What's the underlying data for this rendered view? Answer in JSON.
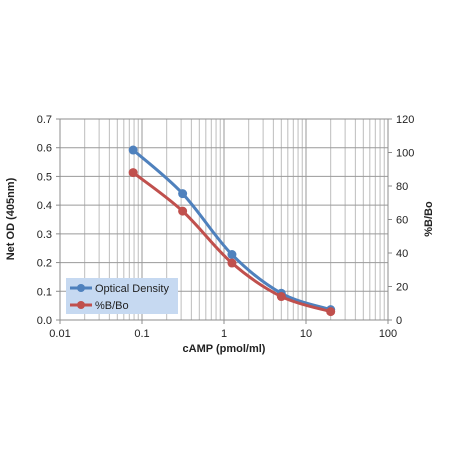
{
  "chart_data": {
    "type": "line",
    "xlabel": "cAMP (pmol/ml)",
    "ylabel": "Net OD (405nm)",
    "y2label": "%B/Bo",
    "x_scale": "log",
    "xlim": [
      0.01,
      100
    ],
    "ylim": [
      0,
      0.7
    ],
    "y2lim": [
      0,
      120
    ],
    "x_ticks": [
      "0.01",
      "0.1",
      "1",
      "10",
      "100"
    ],
    "y_ticks": [
      "0.0",
      "0.1",
      "0.2",
      "0.3",
      "0.4",
      "0.5",
      "0.6",
      "0.7"
    ],
    "y2_ticks": [
      "0",
      "20",
      "40",
      "60",
      "80",
      "100",
      "120"
    ],
    "grid": true,
    "legend_position": "bottom-left",
    "series": [
      {
        "name": "Optical Density",
        "axis": "left",
        "color": "#4F81BD",
        "x": [
          0.078,
          0.313,
          1.25,
          5,
          20
        ],
        "y": [
          0.592,
          0.44,
          0.228,
          0.093,
          0.036
        ]
      },
      {
        "name": "%B/Bo",
        "axis": "right",
        "color": "#C0504D",
        "x": [
          0.078,
          0.313,
          1.25,
          5,
          20
        ],
        "y": [
          88,
          65,
          34,
          14,
          5
        ]
      }
    ]
  }
}
